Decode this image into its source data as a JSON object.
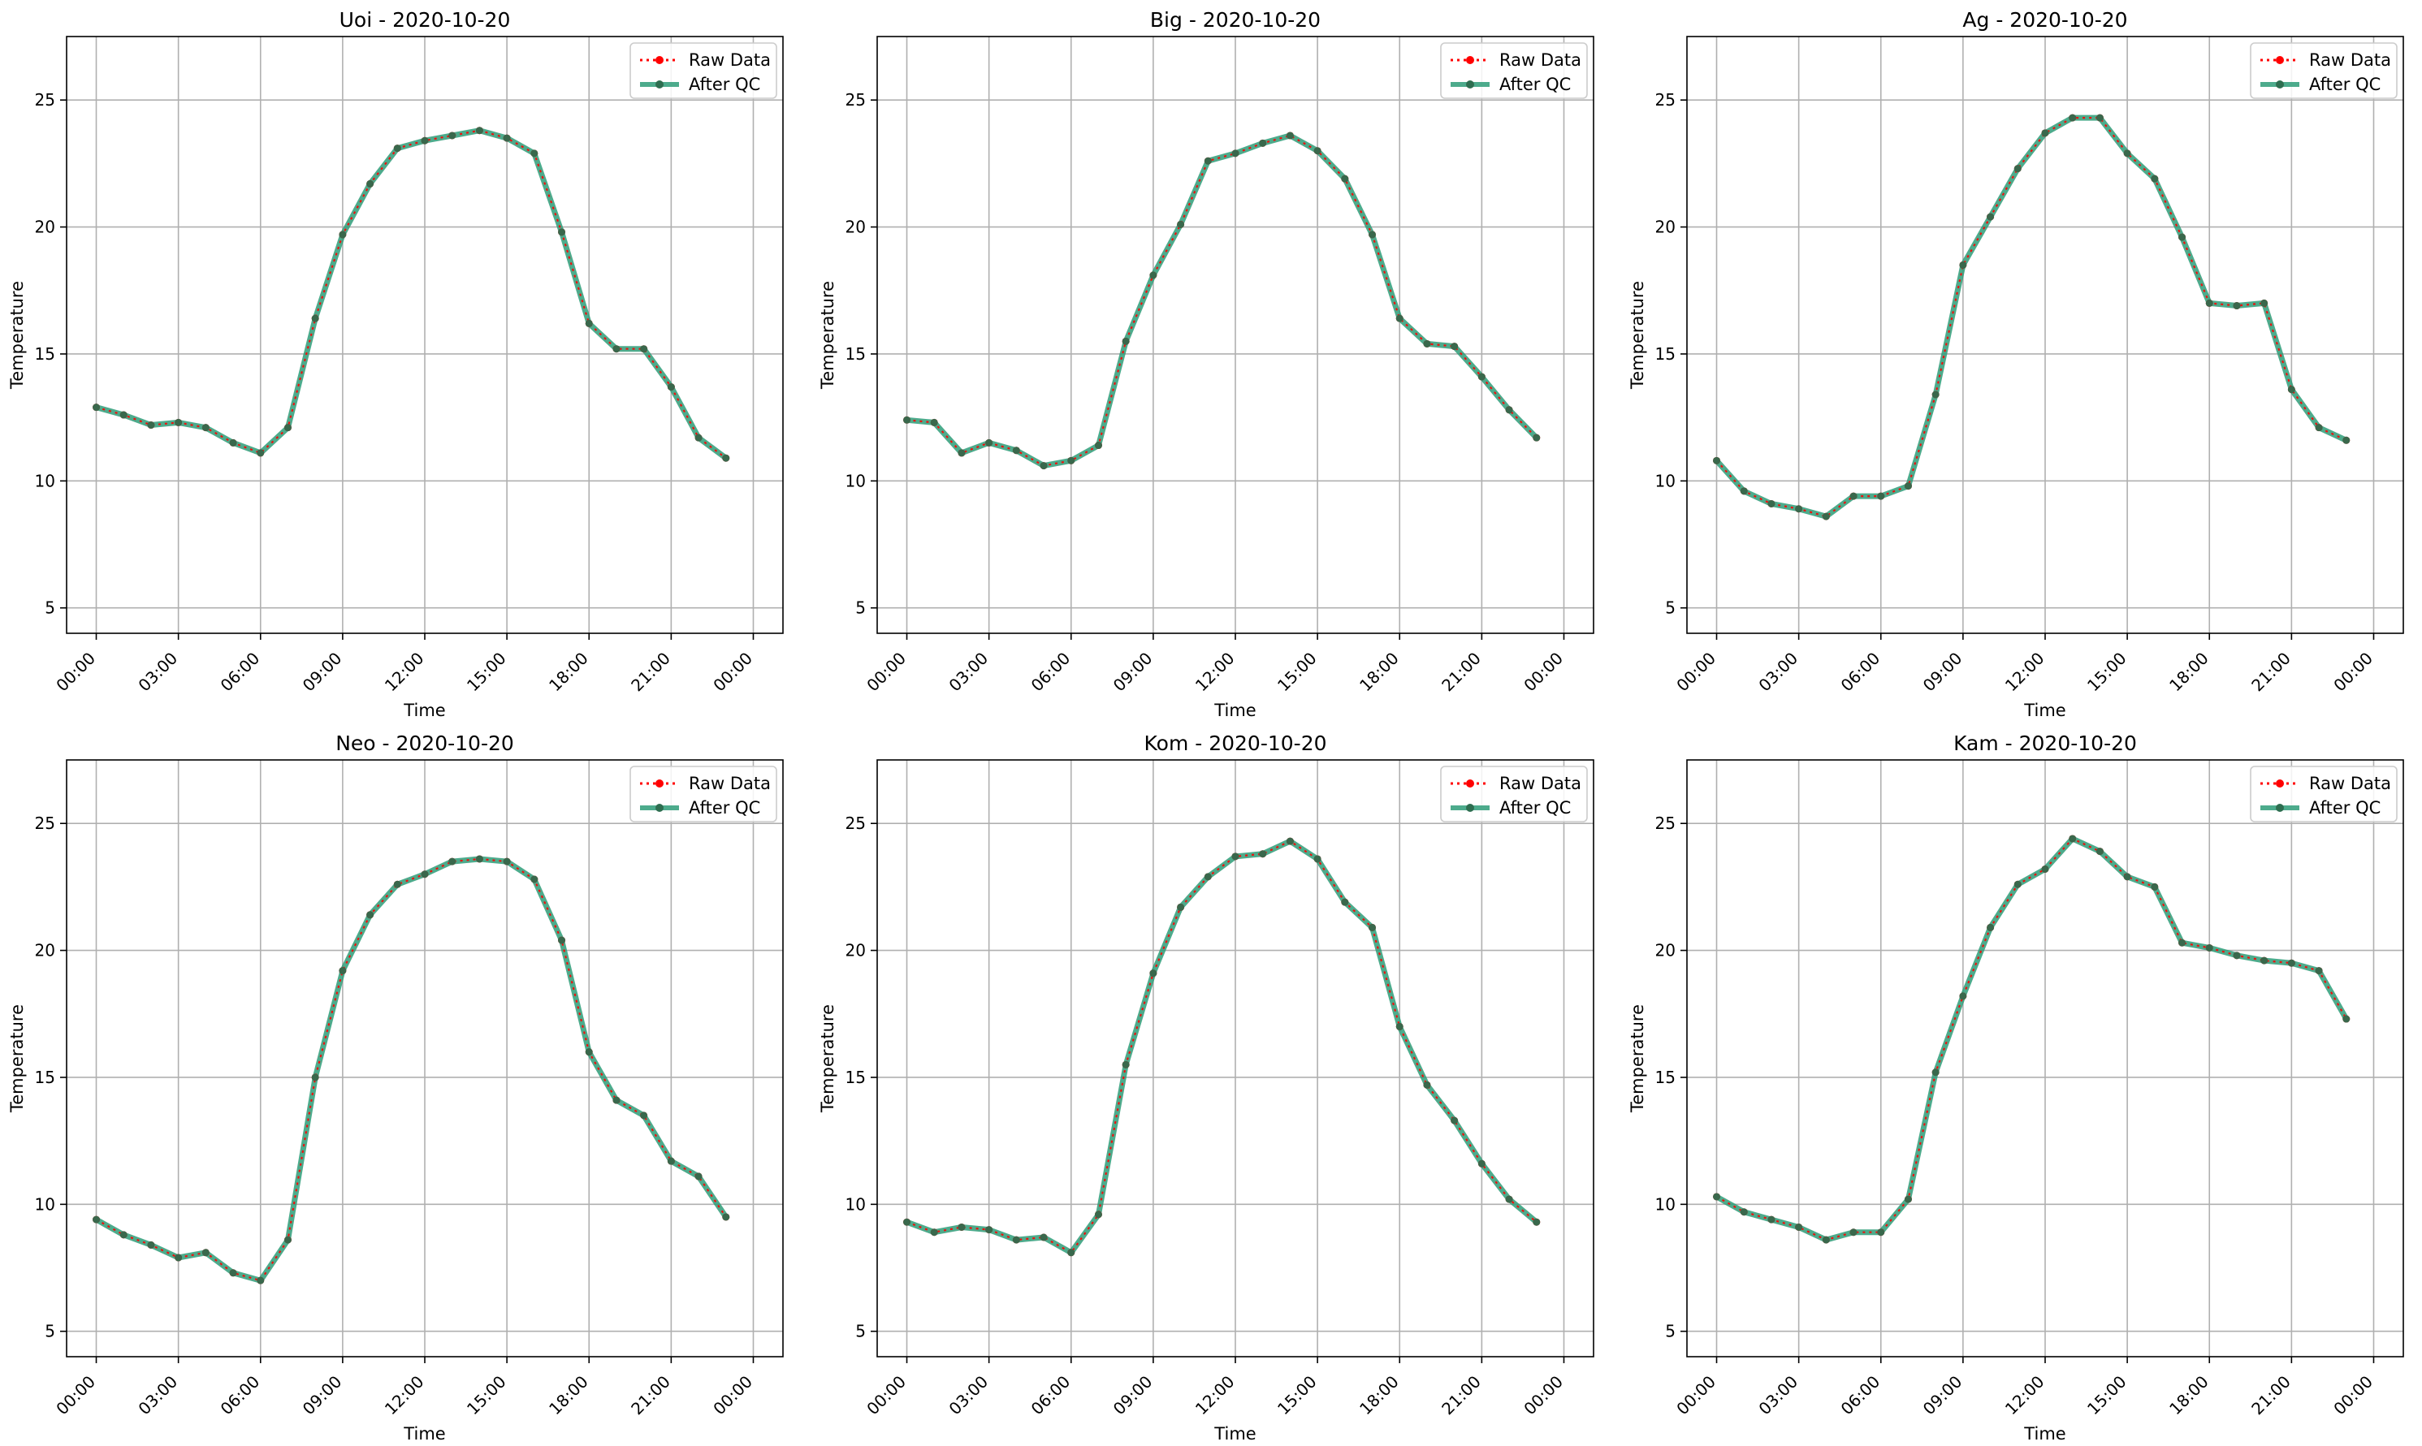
{
  "chart_data": [
    {
      "type": "line",
      "title": "Uoi - 2020-10-20",
      "xlabel": "Time",
      "ylabel": "Temperature",
      "xlim": [
        "23:00",
        "23:45"
      ],
      "ylim": [
        4,
        27.5
      ],
      "grid": true,
      "legend_position": "top-right",
      "x_tick_labels": [
        "00:00",
        "03:00",
        "06:00",
        "09:00",
        "12:00",
        "15:00",
        "18:00",
        "21:00",
        "00:00"
      ],
      "y_tick_labels": [
        "5",
        "10",
        "15",
        "20",
        "25"
      ],
      "x": [
        "00:00",
        "01:00",
        "02:00",
        "03:00",
        "04:00",
        "05:00",
        "06:00",
        "07:00",
        "08:00",
        "09:00",
        "10:00",
        "11:00",
        "12:00",
        "13:00",
        "14:00",
        "15:00",
        "16:00",
        "17:00",
        "18:00",
        "19:00",
        "20:00",
        "21:00",
        "22:00",
        "23:00"
      ],
      "series": [
        {
          "name": "Raw Data",
          "values": [
            12.9,
            12.6,
            12.2,
            12.3,
            12.1,
            11.5,
            11.1,
            12.1,
            16.4,
            19.7,
            21.7,
            23.1,
            23.4,
            23.6,
            23.8,
            23.5,
            22.9,
            19.8,
            16.2,
            15.2,
            15.2,
            13.7,
            11.7,
            10.9
          ]
        },
        {
          "name": "After QC",
          "values": [
            12.9,
            12.6,
            12.2,
            12.3,
            12.1,
            11.5,
            11.1,
            12.1,
            16.4,
            19.7,
            21.7,
            23.1,
            23.4,
            23.6,
            23.8,
            23.5,
            22.9,
            19.8,
            16.2,
            15.2,
            15.2,
            13.7,
            11.7,
            10.9
          ]
        }
      ]
    },
    {
      "type": "line",
      "title": "Big - 2020-10-20",
      "xlabel": "Time",
      "ylabel": "Temperature",
      "xlim": [
        "23:00",
        "23:45"
      ],
      "ylim": [
        4,
        27.5
      ],
      "grid": true,
      "legend_position": "top-right",
      "x_tick_labels": [
        "00:00",
        "03:00",
        "06:00",
        "09:00",
        "12:00",
        "15:00",
        "18:00",
        "21:00",
        "00:00"
      ],
      "y_tick_labels": [
        "5",
        "10",
        "15",
        "20",
        "25"
      ],
      "x": [
        "00:00",
        "01:00",
        "02:00",
        "03:00",
        "04:00",
        "05:00",
        "06:00",
        "07:00",
        "08:00",
        "09:00",
        "10:00",
        "11:00",
        "12:00",
        "13:00",
        "14:00",
        "15:00",
        "16:00",
        "17:00",
        "18:00",
        "19:00",
        "20:00",
        "21:00",
        "22:00",
        "23:00"
      ],
      "series": [
        {
          "name": "Raw Data",
          "values": [
            12.4,
            12.3,
            11.1,
            11.5,
            11.2,
            10.6,
            10.8,
            11.4,
            15.5,
            18.1,
            20.1,
            22.6,
            22.9,
            23.3,
            23.6,
            23.0,
            21.9,
            19.7,
            16.4,
            15.4,
            15.3,
            14.1,
            12.8,
            11.7
          ]
        },
        {
          "name": "After QC",
          "values": [
            12.4,
            12.3,
            11.1,
            11.5,
            11.2,
            10.6,
            10.8,
            11.4,
            15.5,
            18.1,
            20.1,
            22.6,
            22.9,
            23.3,
            23.6,
            23.0,
            21.9,
            19.7,
            16.4,
            15.4,
            15.3,
            14.1,
            12.8,
            11.7
          ]
        }
      ]
    },
    {
      "type": "line",
      "title": "Ag - 2020-10-20",
      "xlabel": "Time",
      "ylabel": "Temperature",
      "xlim": [
        "23:00",
        "23:45"
      ],
      "ylim": [
        4,
        27.5
      ],
      "grid": true,
      "legend_position": "top-right",
      "x_tick_labels": [
        "00:00",
        "03:00",
        "06:00",
        "09:00",
        "12:00",
        "15:00",
        "18:00",
        "21:00",
        "00:00"
      ],
      "y_tick_labels": [
        "5",
        "10",
        "15",
        "20",
        "25"
      ],
      "x": [
        "00:00",
        "01:00",
        "02:00",
        "03:00",
        "04:00",
        "05:00",
        "06:00",
        "07:00",
        "08:00",
        "09:00",
        "10:00",
        "11:00",
        "12:00",
        "13:00",
        "14:00",
        "15:00",
        "16:00",
        "17:00",
        "18:00",
        "19:00",
        "20:00",
        "21:00",
        "22:00",
        "23:00"
      ],
      "series": [
        {
          "name": "Raw Data",
          "values": [
            10.8,
            9.6,
            9.1,
            8.9,
            8.6,
            9.4,
            9.4,
            9.8,
            13.4,
            18.5,
            20.4,
            22.3,
            23.7,
            24.3,
            24.3,
            22.9,
            21.9,
            19.6,
            17.0,
            16.9,
            17.0,
            13.6,
            12.1,
            11.6
          ]
        },
        {
          "name": "After QC",
          "values": [
            10.8,
            9.6,
            9.1,
            8.9,
            8.6,
            9.4,
            9.4,
            9.8,
            13.4,
            18.5,
            20.4,
            22.3,
            23.7,
            24.3,
            24.3,
            22.9,
            21.9,
            19.6,
            17.0,
            16.9,
            17.0,
            13.6,
            12.1,
            11.6
          ]
        }
      ]
    },
    {
      "type": "line",
      "title": "Neo - 2020-10-20",
      "xlabel": "Time",
      "ylabel": "Temperature",
      "xlim": [
        "23:00",
        "23:45"
      ],
      "ylim": [
        4,
        27.5
      ],
      "grid": true,
      "legend_position": "top-right",
      "x_tick_labels": [
        "00:00",
        "03:00",
        "06:00",
        "09:00",
        "12:00",
        "15:00",
        "18:00",
        "21:00",
        "00:00"
      ],
      "y_tick_labels": [
        "5",
        "10",
        "15",
        "20",
        "25"
      ],
      "x": [
        "00:00",
        "01:00",
        "02:00",
        "03:00",
        "04:00",
        "05:00",
        "06:00",
        "07:00",
        "08:00",
        "09:00",
        "10:00",
        "11:00",
        "12:00",
        "13:00",
        "14:00",
        "15:00",
        "16:00",
        "17:00",
        "18:00",
        "19:00",
        "20:00",
        "21:00",
        "22:00",
        "23:00"
      ],
      "series": [
        {
          "name": "Raw Data",
          "values": [
            9.4,
            8.8,
            8.4,
            7.9,
            8.1,
            7.3,
            7.0,
            8.6,
            15.0,
            19.2,
            21.4,
            22.6,
            23.0,
            23.5,
            23.6,
            23.5,
            22.8,
            20.4,
            16.0,
            14.1,
            13.5,
            11.7,
            11.1,
            9.5
          ]
        },
        {
          "name": "After QC",
          "values": [
            9.4,
            8.8,
            8.4,
            7.9,
            8.1,
            7.3,
            7.0,
            8.6,
            15.0,
            19.2,
            21.4,
            22.6,
            23.0,
            23.5,
            23.6,
            23.5,
            22.8,
            20.4,
            16.0,
            14.1,
            13.5,
            11.7,
            11.1,
            9.5
          ]
        }
      ]
    },
    {
      "type": "line",
      "title": "Kom - 2020-10-20",
      "xlabel": "Time",
      "ylabel": "Temperature",
      "xlim": [
        "23:00",
        "23:45"
      ],
      "ylim": [
        4,
        27.5
      ],
      "grid": true,
      "legend_position": "top-right",
      "x_tick_labels": [
        "00:00",
        "03:00",
        "06:00",
        "09:00",
        "12:00",
        "15:00",
        "18:00",
        "21:00",
        "00:00"
      ],
      "y_tick_labels": [
        "5",
        "10",
        "15",
        "20",
        "25"
      ],
      "x": [
        "00:00",
        "01:00",
        "02:00",
        "03:00",
        "04:00",
        "05:00",
        "06:00",
        "07:00",
        "08:00",
        "09:00",
        "10:00",
        "11:00",
        "12:00",
        "13:00",
        "14:00",
        "15:00",
        "16:00",
        "17:00",
        "18:00",
        "19:00",
        "20:00",
        "21:00",
        "22:00",
        "23:00"
      ],
      "series": [
        {
          "name": "Raw Data",
          "values": [
            9.3,
            8.9,
            9.1,
            9.0,
            8.6,
            8.7,
            8.1,
            9.6,
            15.5,
            19.1,
            21.7,
            22.9,
            23.7,
            23.8,
            24.3,
            23.6,
            21.9,
            20.9,
            17.0,
            14.7,
            13.3,
            11.6,
            10.2,
            9.3
          ]
        },
        {
          "name": "After QC",
          "values": [
            9.3,
            8.9,
            9.1,
            9.0,
            8.6,
            8.7,
            8.1,
            9.6,
            15.5,
            19.1,
            21.7,
            22.9,
            23.7,
            23.8,
            24.3,
            23.6,
            21.9,
            20.9,
            17.0,
            14.7,
            13.3,
            11.6,
            10.2,
            9.3
          ]
        }
      ]
    },
    {
      "type": "line",
      "title": "Kam - 2020-10-20",
      "xlabel": "Time",
      "ylabel": "Temperature",
      "xlim": [
        "23:00",
        "23:45"
      ],
      "ylim": [
        4,
        27.5
      ],
      "grid": true,
      "legend_position": "top-right",
      "x_tick_labels": [
        "00:00",
        "03:00",
        "06:00",
        "09:00",
        "12:00",
        "15:00",
        "18:00",
        "21:00",
        "00:00"
      ],
      "y_tick_labels": [
        "5",
        "10",
        "15",
        "20",
        "25"
      ],
      "x": [
        "00:00",
        "01:00",
        "02:00",
        "03:00",
        "04:00",
        "05:00",
        "06:00",
        "07:00",
        "08:00",
        "09:00",
        "10:00",
        "11:00",
        "12:00",
        "13:00",
        "14:00",
        "15:00",
        "16:00",
        "17:00",
        "18:00",
        "19:00",
        "20:00",
        "21:00",
        "22:00",
        "23:00"
      ],
      "series": [
        {
          "name": "Raw Data",
          "values": [
            10.3,
            9.7,
            9.4,
            9.1,
            8.6,
            8.9,
            8.9,
            10.2,
            15.2,
            18.2,
            20.9,
            22.6,
            23.2,
            24.4,
            23.9,
            22.9,
            22.5,
            20.3,
            20.1,
            19.8,
            19.6,
            19.5,
            19.2,
            17.3
          ]
        },
        {
          "name": "After QC",
          "values": [
            10.3,
            9.7,
            9.4,
            9.1,
            8.6,
            8.9,
            8.9,
            10.2,
            15.2,
            18.2,
            20.9,
            22.6,
            23.2,
            24.4,
            23.9,
            22.9,
            22.5,
            20.3,
            20.1,
            19.8,
            19.6,
            19.5,
            19.2,
            17.3
          ]
        }
      ]
    }
  ],
  "colors": {
    "raw": "#ff0000",
    "qc_line": "#2e9c78",
    "qc_marker": "#2e6e50",
    "grid": "#b0b0b0"
  }
}
